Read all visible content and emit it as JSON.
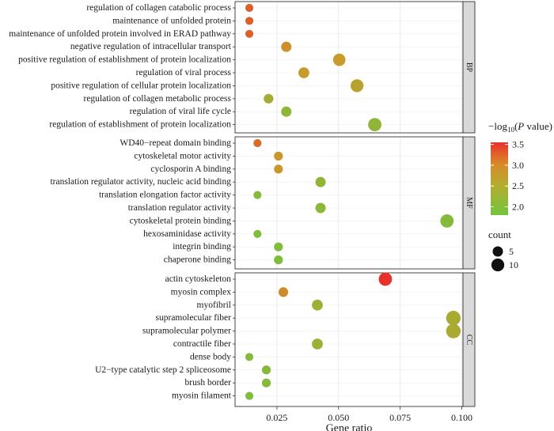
{
  "chart_data": {
    "type": "scatter",
    "xlabel": "Gene ratio",
    "xlim": [
      0.008,
      0.1005
    ],
    "x_ticks": [
      "0.025",
      "0.050",
      "0.075",
      "0.100"
    ],
    "x_tick_values": [
      0.025,
      0.05,
      0.075,
      0.1
    ],
    "grid": true,
    "legend_position": "right",
    "color_legend": {
      "title_prefix": "−log",
      "title_subscript": "10",
      "title_open": "(",
      "title_italic": "P",
      "title_suffix": " value)",
      "min": 1.8,
      "max": 3.55,
      "ticks": [
        "3.5",
        "3.0",
        "2.5",
        "2.0"
      ],
      "tick_values": [
        3.5,
        3.0,
        2.5,
        2.0
      ],
      "colors": [
        "#e8312b",
        "#c99a2b",
        "#72c43f"
      ]
    },
    "size_legend": {
      "title": "count",
      "entries": [
        {
          "label": "5",
          "value": 5
        },
        {
          "label": "10",
          "value": 10
        }
      ]
    },
    "panels": [
      {
        "name": "BP",
        "terms": [
          {
            "term": "regulation of collagen catabolic process",
            "ratio": 0.0138,
            "logp": 3.15,
            "count": 2
          },
          {
            "term": "maintenance of unfolded protein",
            "ratio": 0.0138,
            "logp": 3.15,
            "count": 2
          },
          {
            "term": "maintenance of unfolded protein involved in ERAD pathway",
            "ratio": 0.0138,
            "logp": 3.15,
            "count": 2
          },
          {
            "term": "negative regulation of intracellular transport",
            "ratio": 0.0288,
            "logp": 2.75,
            "count": 5
          },
          {
            "term": "positive regulation of establishment of protein localization",
            "ratio": 0.0503,
            "logp": 2.65,
            "count": 9
          },
          {
            "term": "regulation of viral process",
            "ratio": 0.0359,
            "logp": 2.65,
            "count": 6
          },
          {
            "term": "positive regulation of cellular protein localization",
            "ratio": 0.0575,
            "logp": 2.5,
            "count": 10
          },
          {
            "term": "regulation of collagen metabolic process",
            "ratio": 0.0216,
            "logp": 2.3,
            "count": 4
          },
          {
            "term": "regulation of viral life cycle",
            "ratio": 0.0288,
            "logp": 2.1,
            "count": 5
          },
          {
            "term": "regulation of establishment of protein localization",
            "ratio": 0.0647,
            "logp": 2.1,
            "count": 11
          }
        ]
      },
      {
        "name": "MF",
        "terms": [
          {
            "term": "WD40−repeat domain binding",
            "ratio": 0.0171,
            "logp": 3.05,
            "count": 2
          },
          {
            "term": "cytoskeletal motor activity",
            "ratio": 0.0256,
            "logp": 2.7,
            "count": 3
          },
          {
            "term": "cyclosporin A binding",
            "ratio": 0.0256,
            "logp": 2.7,
            "count": 3
          },
          {
            "term": "translation regulator activity, nucleic acid binding",
            "ratio": 0.0427,
            "logp": 2.1,
            "count": 5
          },
          {
            "term": "translation elongation factor activity",
            "ratio": 0.0171,
            "logp": 2.0,
            "count": 2
          },
          {
            "term": "translation regulator activity",
            "ratio": 0.0427,
            "logp": 2.05,
            "count": 5
          },
          {
            "term": "cytoskeletal protein binding",
            "ratio": 0.094,
            "logp": 2.0,
            "count": 11
          },
          {
            "term": "hexosaminidase activity",
            "ratio": 0.0171,
            "logp": 1.95,
            "count": 2
          },
          {
            "term": "integrin binding",
            "ratio": 0.0256,
            "logp": 1.95,
            "count": 3
          },
          {
            "term": "chaperone binding",
            "ratio": 0.0256,
            "logp": 1.95,
            "count": 3
          }
        ]
      },
      {
        "name": "CC",
        "terms": [
          {
            "term": "actin cytoskeleton",
            "ratio": 0.069,
            "logp": 3.55,
            "count": 11
          },
          {
            "term": "myosin complex",
            "ratio": 0.0276,
            "logp": 2.8,
            "count": 4
          },
          {
            "term": "myofibril",
            "ratio": 0.0414,
            "logp": 2.25,
            "count": 6
          },
          {
            "term": "supramolecular fiber",
            "ratio": 0.0966,
            "logp": 2.35,
            "count": 14
          },
          {
            "term": "supramolecular polymer",
            "ratio": 0.0966,
            "logp": 2.35,
            "count": 14
          },
          {
            "term": "contractile fiber",
            "ratio": 0.0414,
            "logp": 2.2,
            "count": 6
          },
          {
            "term": "dense body",
            "ratio": 0.0138,
            "logp": 2.0,
            "count": 2
          },
          {
            "term": "U2−type catalytic step 2 spliceosome",
            "ratio": 0.0207,
            "logp": 2.0,
            "count": 3
          },
          {
            "term": "brush border",
            "ratio": 0.0207,
            "logp": 2.0,
            "count": 3
          },
          {
            "term": "myosin filament",
            "ratio": 0.0138,
            "logp": 1.95,
            "count": 2
          }
        ]
      }
    ]
  }
}
